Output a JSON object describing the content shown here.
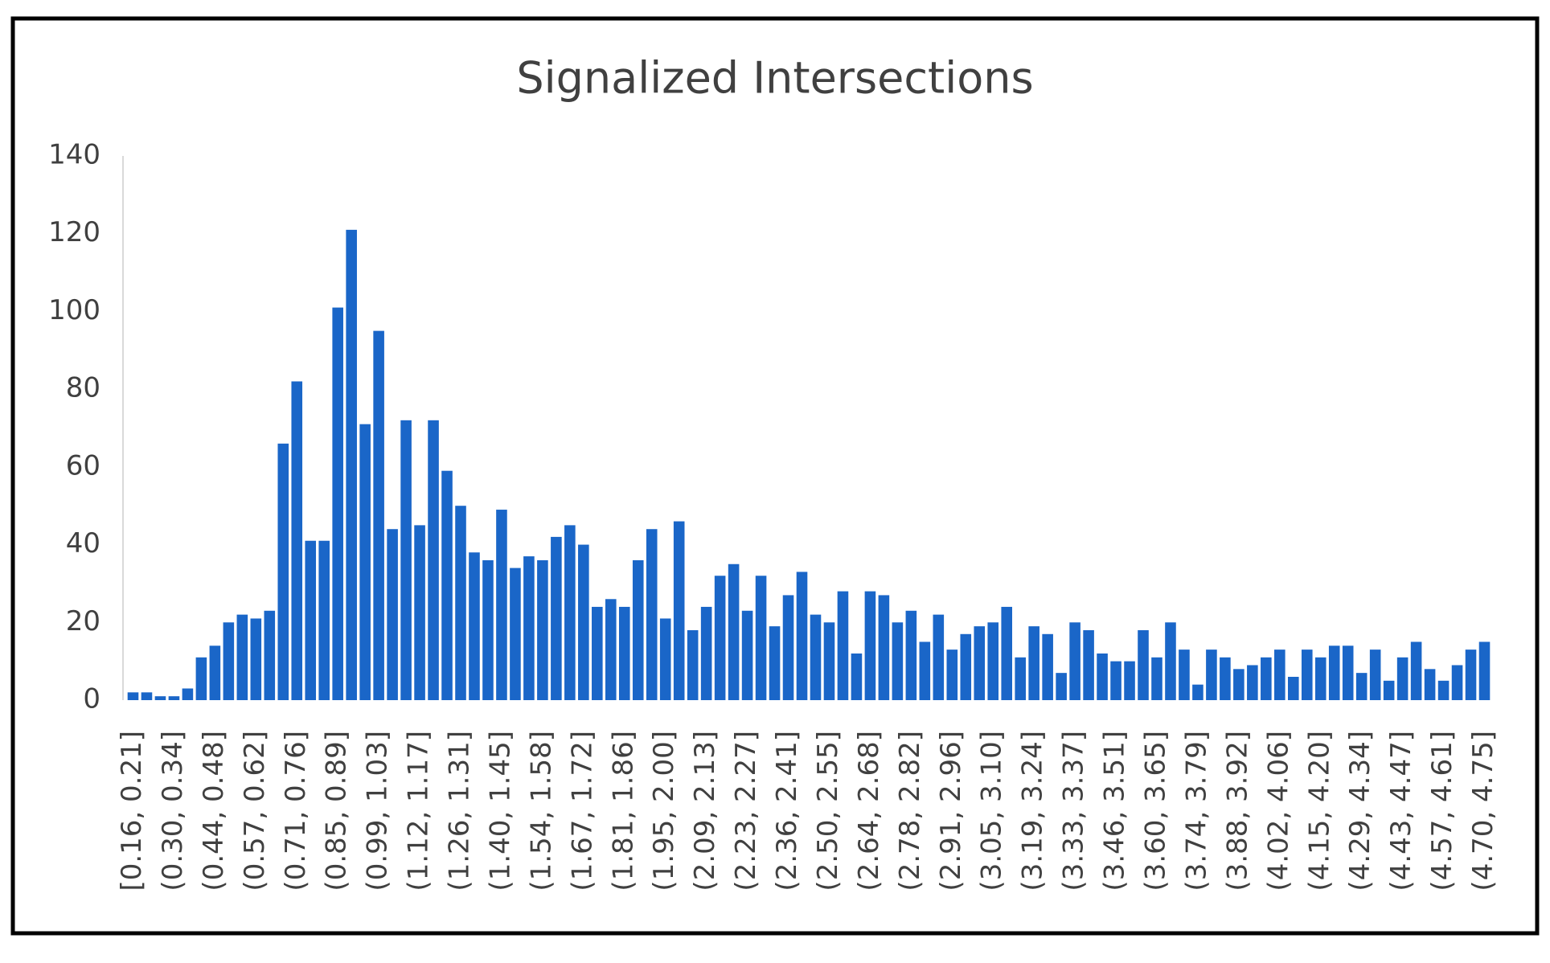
{
  "chart_data": {
    "type": "bar",
    "title": "Signalized Intersections",
    "categories": [
      "[0.16, 0.21]",
      null,
      null,
      "(0.30, 0.34]",
      null,
      null,
      "(0.44, 0.48]",
      null,
      null,
      "(0.57, 0.62]",
      null,
      null,
      "(0.71, 0.76]",
      null,
      null,
      "(0.85, 0.89]",
      null,
      null,
      "(0.99, 1.03]",
      null,
      null,
      "(1.12, 1.17]",
      null,
      null,
      "(1.26, 1.31]",
      null,
      null,
      "(1.40, 1.45]",
      null,
      null,
      "(1.54, 1.58]",
      null,
      null,
      "(1.67, 1.72]",
      null,
      null,
      "(1.81, 1.86]",
      null,
      null,
      "(1.95, 2.00]",
      null,
      null,
      "(2.09, 2.13]",
      null,
      null,
      "(2.23, 2.27]",
      null,
      null,
      "(2.36, 2.41]",
      null,
      null,
      "(2.50, 2.55]",
      null,
      null,
      "(2.64, 2.68]",
      null,
      null,
      "(2.78, 2.82]",
      null,
      null,
      "(2.91, 2.96]",
      null,
      null,
      "(3.05, 3.10]",
      null,
      null,
      "(3.19, 3.24]",
      null,
      null,
      "(3.33, 3.37]",
      null,
      null,
      "(3.46, 3.51]",
      null,
      null,
      "(3.60, 3.65]",
      null,
      null,
      "(3.74, 3.79]",
      null,
      null,
      "(3.88, 3.92]",
      null,
      null,
      "(4.02, 4.06]",
      null,
      null,
      "(4.15, 4.20]",
      null,
      null,
      "(4.29, 4.34]",
      null,
      null,
      "(4.43, 4.47]",
      null,
      null,
      "(4.57, 4.61]",
      null,
      null,
      "(4.70, 4.75]"
    ],
    "values": [
      2,
      2,
      1,
      1,
      3,
      11,
      14,
      20,
      22,
      21,
      23,
      66,
      82,
      41,
      41,
      101,
      121,
      71,
      95,
      44,
      72,
      45,
      72,
      59,
      50,
      38,
      36,
      49,
      34,
      37,
      36,
      42,
      45,
      40,
      24,
      26,
      24,
      36,
      44,
      21,
      46,
      18,
      24,
      32,
      35,
      23,
      32,
      19,
      27,
      33,
      22,
      20,
      28,
      12,
      28,
      27,
      20,
      23,
      15,
      22,
      13,
      17,
      19,
      20,
      24,
      11,
      19,
      17,
      7,
      20,
      18,
      12,
      10,
      10,
      18,
      11,
      20,
      13,
      4,
      13,
      11,
      8,
      9,
      11,
      13,
      6,
      13,
      11,
      14,
      14,
      7,
      13,
      5,
      11,
      15,
      8,
      5,
      9,
      13,
      15
    ],
    "color": "#1a66c8",
    "ylim": [
      0,
      140
    ],
    "yticks": [
      0,
      20,
      40,
      60,
      80,
      100,
      120,
      140
    ],
    "grid": false
  }
}
